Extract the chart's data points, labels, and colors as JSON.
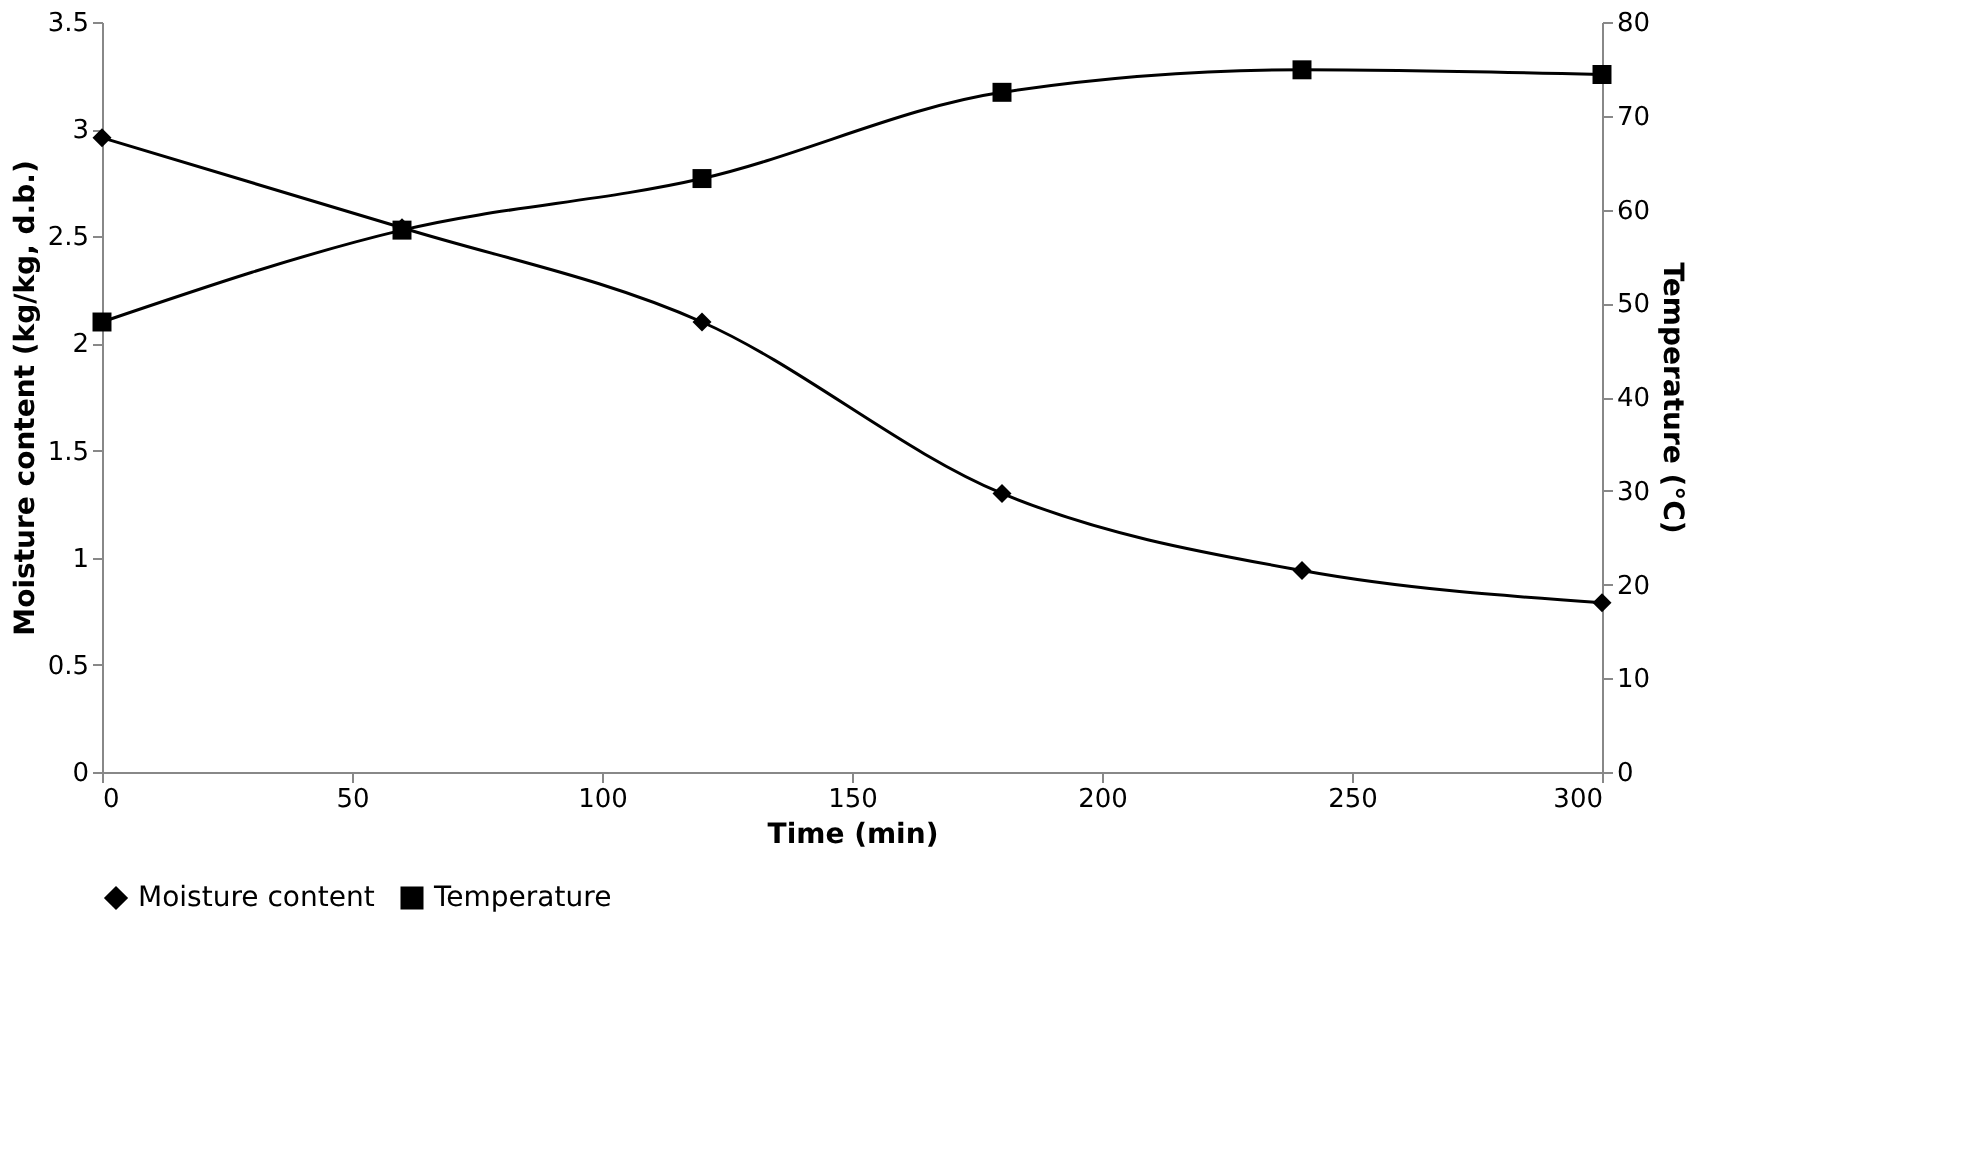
{
  "chart_data": {
    "type": "line",
    "xlabel": "Time (min)",
    "ylabel": "Moisture content (kg/kg, d.b.)",
    "y2label": "Temperature (°C)",
    "x": [
      0,
      60,
      120,
      180,
      240,
      300
    ],
    "xlim": [
      0,
      300
    ],
    "xticks": [
      0,
      50,
      100,
      150,
      200,
      250,
      300
    ],
    "ylim": [
      0,
      3.5
    ],
    "yticks": [
      0,
      0.5,
      1,
      1.5,
      2,
      2.5,
      3,
      3.5
    ],
    "y2lim": [
      0,
      80
    ],
    "y2ticks": [
      0,
      10,
      20,
      30,
      40,
      50,
      60,
      70,
      80
    ],
    "grid": false,
    "legend": "bottom",
    "line_style": "solid",
    "series": [
      {
        "name": "Moisture content",
        "color": "#000000",
        "marker": "diamond",
        "axis": "y",
        "values": [
          2.96,
          2.54,
          2.1,
          1.3,
          0.94,
          0.79
        ]
      },
      {
        "name": "Temperature",
        "color": "#000000",
        "marker": "square",
        "axis": "y2",
        "values": [
          48,
          57.8,
          63.3,
          72.5,
          74.9,
          74.4
        ]
      }
    ]
  }
}
